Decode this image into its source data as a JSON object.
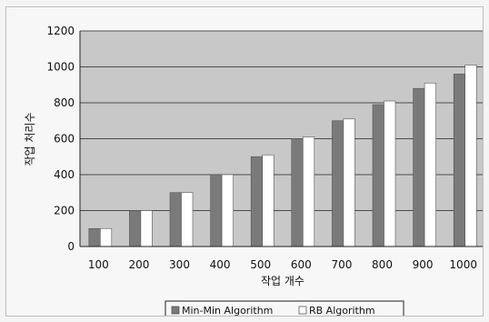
{
  "chart_data": {
    "type": "bar",
    "title": "",
    "xlabel": "작업 개수",
    "ylabel": "작업 처리수",
    "categories": [
      "100",
      "200",
      "300",
      "400",
      "500",
      "600",
      "700",
      "800",
      "900",
      "1000"
    ],
    "series": [
      {
        "name": "Min-Min Algorithm",
        "color": "#7a7a7a",
        "values": [
          100,
          200,
          300,
          400,
          500,
          600,
          700,
          790,
          880,
          960
        ]
      },
      {
        "name": "RB Algorithm",
        "color": "#ffffff",
        "values": [
          100,
          200,
          300,
          400,
          510,
          610,
          710,
          810,
          910,
          1010
        ]
      }
    ],
    "ylim": [
      0,
      1200
    ],
    "yticks": [
      "0",
      "200",
      "400",
      "600",
      "800",
      "1000",
      "1200"
    ],
    "grid": true,
    "legend_position": "bottom"
  }
}
